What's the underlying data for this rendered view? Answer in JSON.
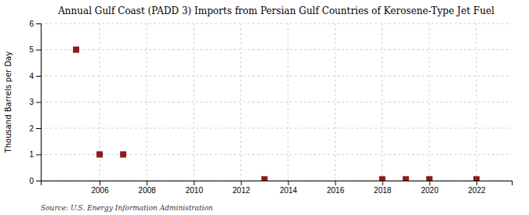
{
  "chart_data": {
    "type": "scatter",
    "title": "Annual Gulf Coast (PADD 3) Imports from Persian Gulf Countries of Kerosene-Type Jet Fuel",
    "y_label": "Thousand Barrels per Day",
    "annotation": "Source: U.S. Energy Information Administration",
    "x": [
      2005,
      2006,
      2007,
      2013,
      2018,
      2019,
      2020,
      2022
    ],
    "values": [
      5.0,
      1.0,
      1.0,
      0.05,
      0.05,
      0.05,
      0.05,
      0.05
    ],
    "color": "#8b1a1a",
    "marker": "square",
    "xlim": [
      2003.5,
      2023.5
    ],
    "ylim": [
      0,
      6
    ],
    "xticks": [
      2006,
      2008,
      2010,
      2012,
      2014,
      2016,
      2018,
      2020,
      2022
    ],
    "yticks": [
      0,
      1,
      2,
      3,
      4,
      5,
      6
    ],
    "grid": true
  }
}
